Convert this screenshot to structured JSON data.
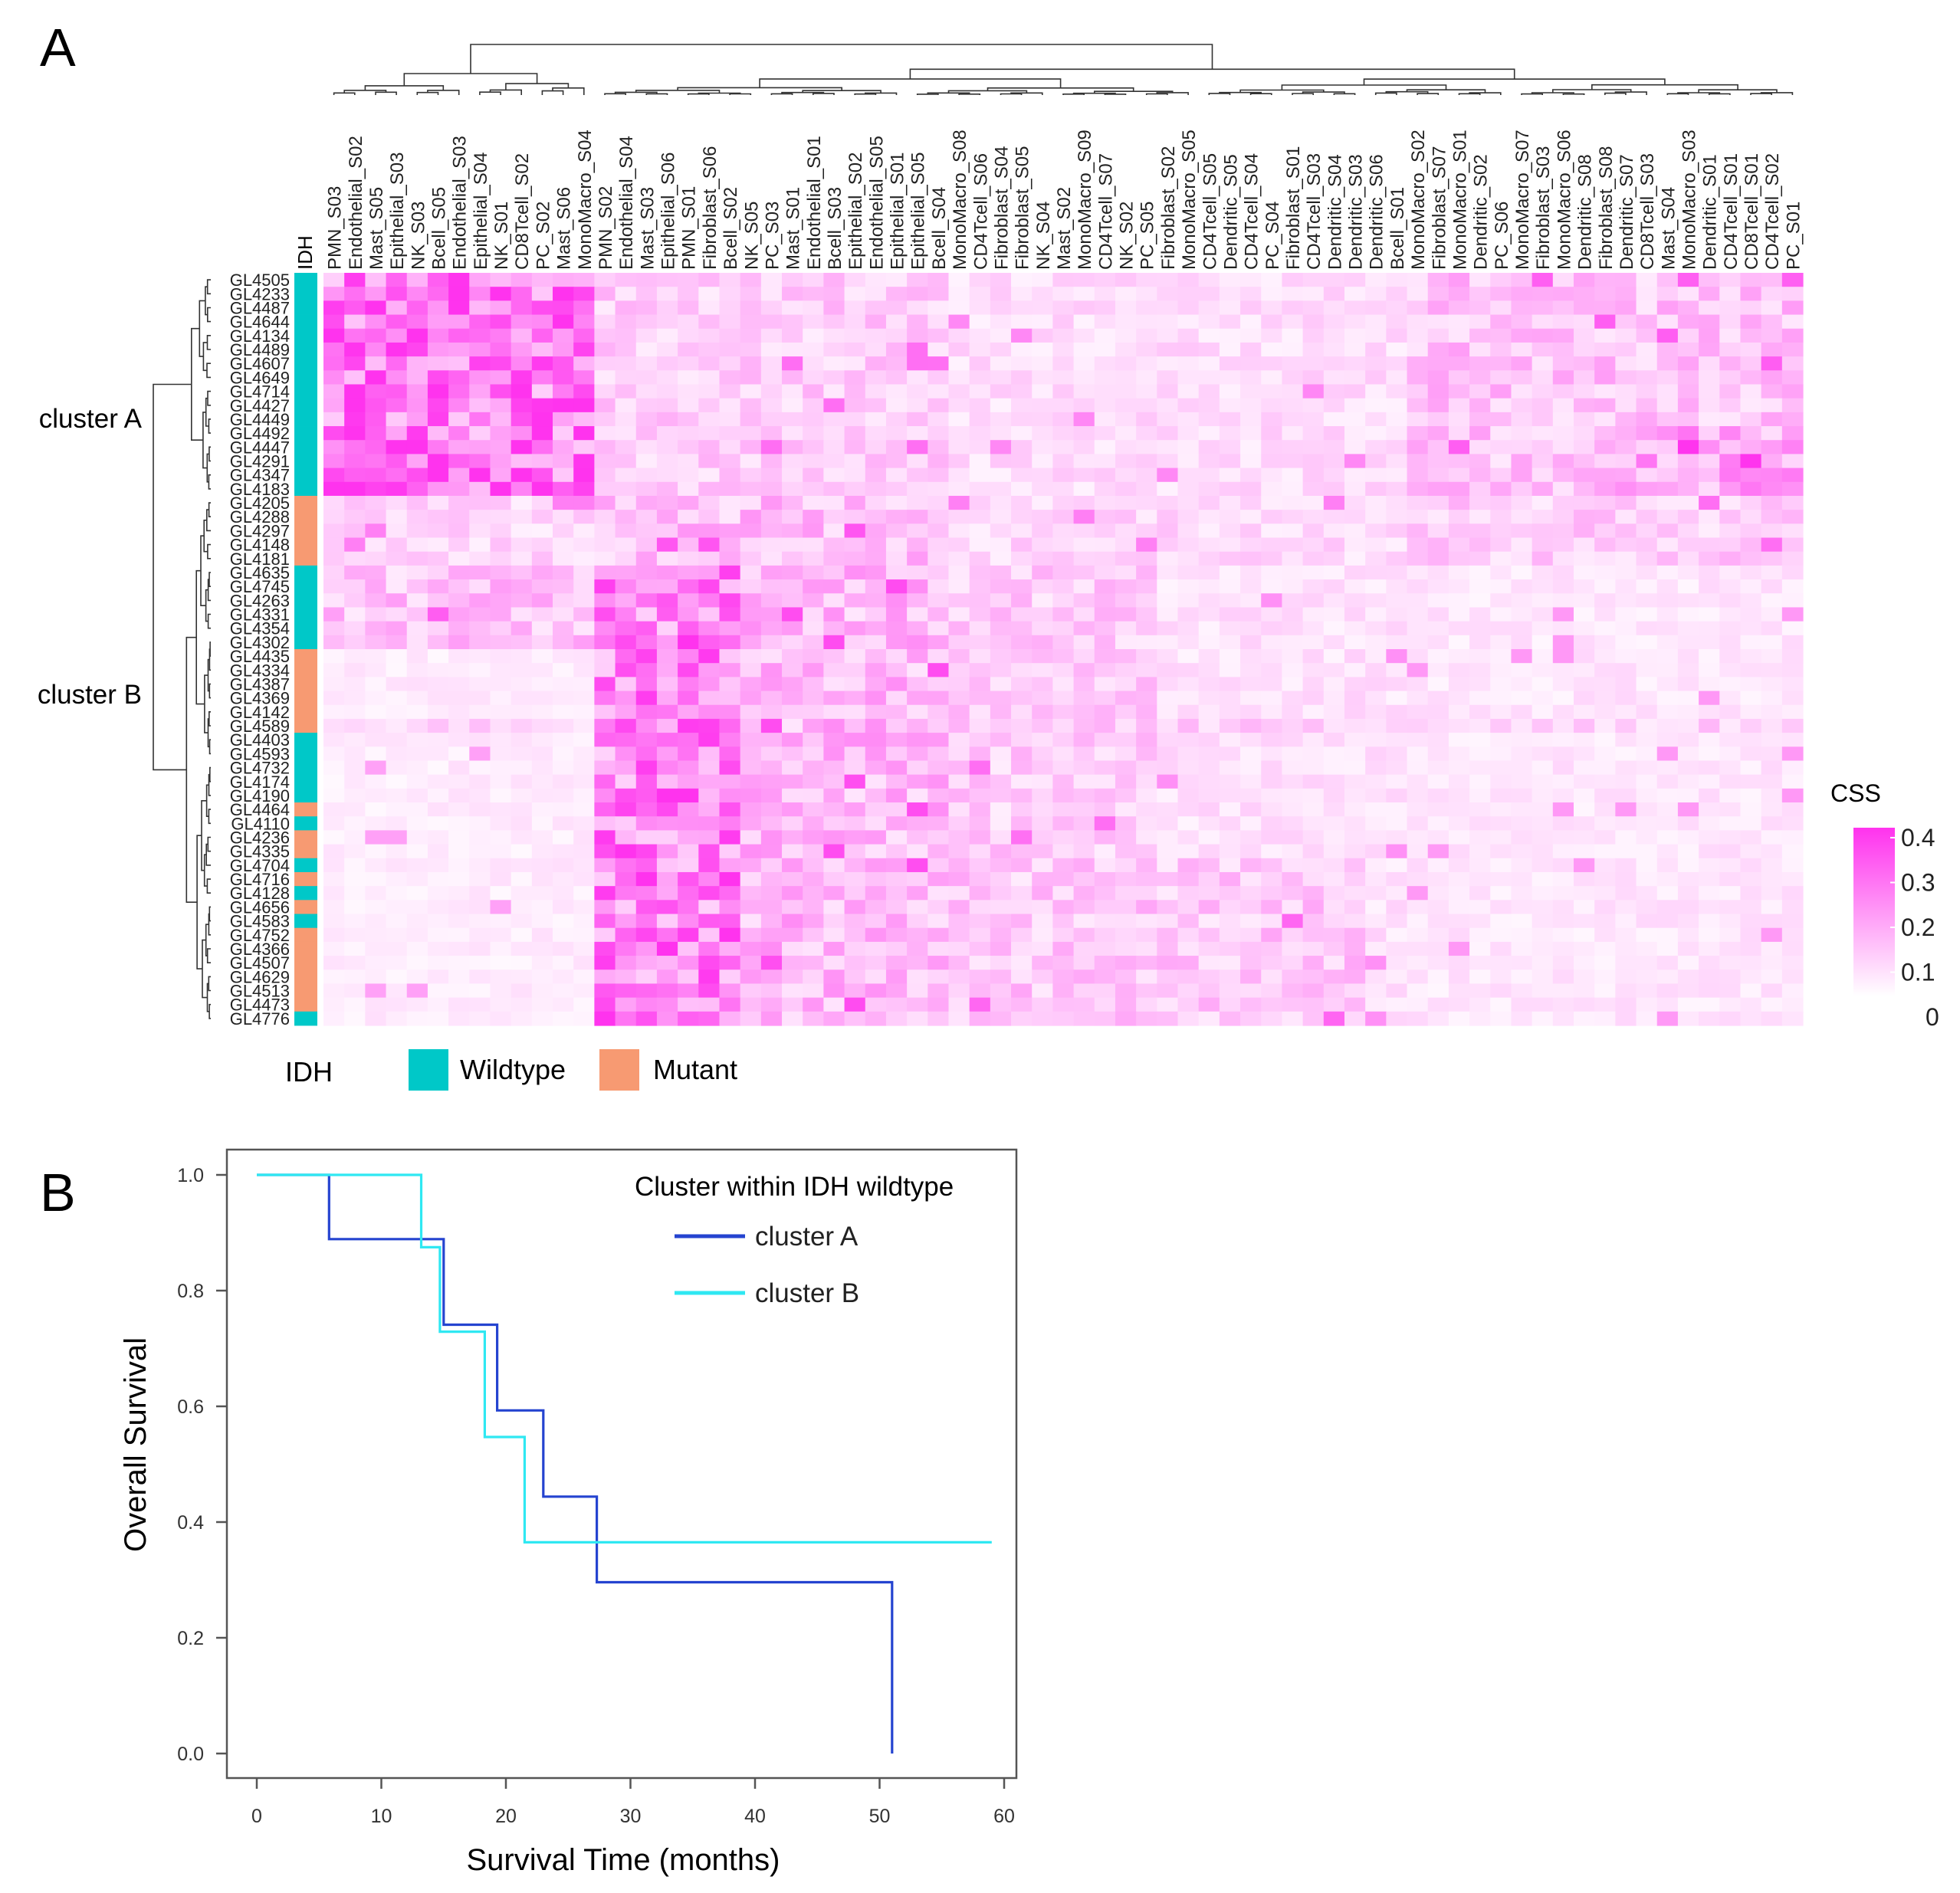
{
  "panels": {
    "a_label": "A",
    "b_label": "B"
  },
  "heatmap": {
    "type": "heatmap",
    "columns": [
      "PMN_S03",
      "Endothelial_S02",
      "Mast_S05",
      "Epithelial_S03",
      "NK_S03",
      "Bcell_S05",
      "Endothelial_S03",
      "Epithelial_S04",
      "NK_S01",
      "CD8Tcell_S02",
      "PC_S02",
      "Mast_S06",
      "MonoMacro_S04",
      "PMN_S02",
      "Endothelial_S04",
      "Mast_S03",
      "Epithelial_S06",
      "PMN_S01",
      "Fibroblast_S06",
      "Bcell_S02",
      "NK_S05",
      "PC_S03",
      "Mast_S01",
      "Endothelial_S01",
      "Bcell_S03",
      "Epithelial_S02",
      "Endothelial_S05",
      "Epithelial_S01",
      "Epithelial_S05",
      "Bcell_S04",
      "MonoMacro_S08",
      "CD4Tcell_S06",
      "Fibroblast_S04",
      "Fibroblast_S05",
      "NK_S04",
      "Mast_S02",
      "MonoMacro_S09",
      "CD4Tcell_S07",
      "NK_S02",
      "PC_S05",
      "Fibroblast_S02",
      "MonoMacro_S05",
      "CD4Tcell_S05",
      "Dendritic_S05",
      "CD4Tcell_S04",
      "PC_S04",
      "Fibroblast_S01",
      "CD4Tcell_S03",
      "Dendritic_S04",
      "Dendritic_S03",
      "Dendritic_S06",
      "Bcell_S01",
      "MonoMacro_S02",
      "Fibroblast_S07",
      "MonoMacro_S01",
      "Dendritic_S02",
      "PC_S06",
      "MonoMacro_S07",
      "Fibroblast_S03",
      "MonoMacro_S06",
      "Dendritic_S08",
      "Fibroblast_S08",
      "Dendritic_S07",
      "CD8Tcell_S03",
      "Mast_S04",
      "MonoMacro_S03",
      "Dendritic_S01",
      "CD4Tcell_S01",
      "CD8Tcell_S01",
      "CD4Tcell_S02",
      "PC_S01"
    ],
    "rows": [
      {
        "id": "GL4505",
        "idh": "Wildtype"
      },
      {
        "id": "GL4233",
        "idh": "Wildtype"
      },
      {
        "id": "GL4487",
        "idh": "Wildtype"
      },
      {
        "id": "GL4644",
        "idh": "Wildtype"
      },
      {
        "id": "GL4134",
        "idh": "Wildtype"
      },
      {
        "id": "GL4489",
        "idh": "Wildtype"
      },
      {
        "id": "GL4607",
        "idh": "Wildtype"
      },
      {
        "id": "GL4649",
        "idh": "Wildtype"
      },
      {
        "id": "GL4714",
        "idh": "Wildtype"
      },
      {
        "id": "GL4427",
        "idh": "Wildtype"
      },
      {
        "id": "GL4449",
        "idh": "Wildtype"
      },
      {
        "id": "GL4492",
        "idh": "Wildtype"
      },
      {
        "id": "GL4447",
        "idh": "Wildtype"
      },
      {
        "id": "GL4291",
        "idh": "Wildtype"
      },
      {
        "id": "GL4347",
        "idh": "Wildtype"
      },
      {
        "id": "GL4183",
        "idh": "Wildtype"
      },
      {
        "id": "GL4205",
        "idh": "Mutant"
      },
      {
        "id": "GL4288",
        "idh": "Mutant"
      },
      {
        "id": "GL4297",
        "idh": "Mutant"
      },
      {
        "id": "GL4148",
        "idh": "Mutant"
      },
      {
        "id": "GL4181",
        "idh": "Mutant"
      },
      {
        "id": "GL4635",
        "idh": "Wildtype"
      },
      {
        "id": "GL4745",
        "idh": "Wildtype"
      },
      {
        "id": "GL4263",
        "idh": "Wildtype"
      },
      {
        "id": "GL4331",
        "idh": "Wildtype"
      },
      {
        "id": "GL4354",
        "idh": "Wildtype"
      },
      {
        "id": "GL4302",
        "idh": "Wildtype"
      },
      {
        "id": "GL4435",
        "idh": "Mutant"
      },
      {
        "id": "GL4334",
        "idh": "Mutant"
      },
      {
        "id": "GL4387",
        "idh": "Mutant"
      },
      {
        "id": "GL4369",
        "idh": "Mutant"
      },
      {
        "id": "GL4142",
        "idh": "Mutant"
      },
      {
        "id": "GL4589",
        "idh": "Mutant"
      },
      {
        "id": "GL4403",
        "idh": "Wildtype"
      },
      {
        "id": "GL4593",
        "idh": "Wildtype"
      },
      {
        "id": "GL4732",
        "idh": "Wildtype"
      },
      {
        "id": "GL4174",
        "idh": "Wildtype"
      },
      {
        "id": "GL4190",
        "idh": "Wildtype"
      },
      {
        "id": "GL4464",
        "idh": "Mutant"
      },
      {
        "id": "GL4110",
        "idh": "Wildtype"
      },
      {
        "id": "GL4236",
        "idh": "Mutant"
      },
      {
        "id": "GL4335",
        "idh": "Mutant"
      },
      {
        "id": "GL4704",
        "idh": "Wildtype"
      },
      {
        "id": "GL4716",
        "idh": "Mutant"
      },
      {
        "id": "GL4128",
        "idh": "Wildtype"
      },
      {
        "id": "GL4656",
        "idh": "Mutant"
      },
      {
        "id": "GL4583",
        "idh": "Wildtype"
      },
      {
        "id": "GL4752",
        "idh": "Mutant"
      },
      {
        "id": "GL4366",
        "idh": "Mutant"
      },
      {
        "id": "GL4507",
        "idh": "Mutant"
      },
      {
        "id": "GL4629",
        "idh": "Mutant"
      },
      {
        "id": "GL4513",
        "idh": "Mutant"
      },
      {
        "id": "GL4473",
        "idh": "Mutant"
      },
      {
        "id": "GL4776",
        "idh": "Wildtype"
      }
    ],
    "annotation_label": "IDH",
    "cluster_a_label": "cluster A",
    "cluster_b_label": "cluster B",
    "legend_title": "CSS",
    "legend_ticks": [
      "0.4",
      "0.3",
      "0.2",
      "0.1",
      "0"
    ],
    "color_range": [
      0,
      0.4
    ],
    "low_color": "#ffffff",
    "high_color": "#ff33ee",
    "idh_legend": {
      "title": "IDH",
      "wildtype": "Wildtype",
      "mutant": "Mutant"
    },
    "idh_colors": {
      "Wildtype": "#00c8c8",
      "Mutant": "#f79a72"
    }
  },
  "chart_data": {
    "type": "line",
    "legend_title": "Cluster within IDH wildtype",
    "xlabel": "Survival Time (months)",
    "ylabel": "Overall Survival",
    "xlim": [
      0,
      60
    ],
    "ylim": [
      0,
      1
    ],
    "x_ticks": [
      "0",
      "10",
      "20",
      "30",
      "40",
      "50",
      "60"
    ],
    "y_ticks": [
      "0.0",
      "0.2",
      "0.4",
      "0.6",
      "0.8",
      "1.0"
    ],
    "legend_position": "top-right",
    "series": [
      {
        "name": "cluster A",
        "color": "#2544d0",
        "step": true,
        "x": [
          0,
          5.8,
          15,
          19.3,
          23,
          27.3,
          51,
          51
        ],
        "y": [
          1.0,
          0.889,
          0.741,
          0.593,
          0.444,
          0.296,
          0.296,
          0.0
        ]
      },
      {
        "name": "cluster B",
        "color": "#2fe8f2",
        "step": true,
        "x": [
          0,
          13.2,
          14.7,
          18.3,
          21.5,
          59
        ],
        "y": [
          1.0,
          0.875,
          0.729,
          0.547,
          0.365,
          0.365
        ]
      }
    ]
  }
}
